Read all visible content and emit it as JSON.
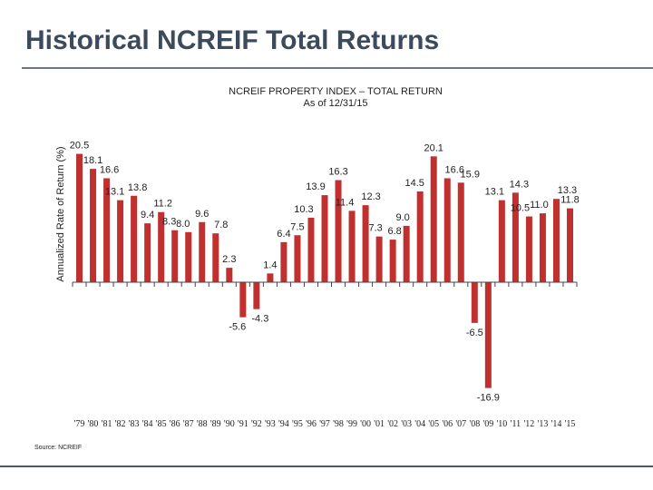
{
  "slide": {
    "title": "Historical NCREIF Total Returns",
    "source": "Source: NCREIF"
  },
  "colors": {
    "bar": "#c0302f",
    "title": "#3b4a5c"
  },
  "chart_data": {
    "type": "bar",
    "title": "NCREIF PROPERTY INDEX – TOTAL RETURN",
    "subtitle": "As of 12/31/15",
    "xlabel": "",
    "ylabel": "Annualized Rate of Return (%)",
    "ylim": [
      -18,
      22
    ],
    "grid": false,
    "categories": [
      "'79",
      "'80",
      "'81",
      "'82",
      "'83",
      "'84",
      "'85",
      "'86",
      "'87",
      "'88",
      "'89",
      "'90",
      "'91",
      "'92",
      "'93",
      "'94",
      "'95",
      "'96",
      "'97",
      "'98",
      "'99",
      "'00",
      "'01",
      "'02",
      "'03",
      "'04",
      "'05",
      "'06",
      "'07",
      "'08",
      "'09",
      "'10",
      "'11",
      "'12",
      "'13",
      "'14",
      "'15"
    ],
    "values": [
      20.5,
      18.1,
      16.6,
      13.1,
      13.8,
      9.4,
      11.2,
      8.3,
      8.0,
      9.6,
      7.8,
      2.3,
      -5.6,
      -4.3,
      1.4,
      6.4,
      7.5,
      10.3,
      13.9,
      16.3,
      11.4,
      12.3,
      7.3,
      6.8,
      9.0,
      14.5,
      20.1,
      16.6,
      15.9,
      -6.5,
      -16.9,
      13.1,
      14.3,
      10.5,
      11.0,
      13.3,
      11.8
    ],
    "labels": [
      "20.5",
      "18.1",
      "16.6",
      "13.1",
      "13.8",
      "9.4",
      "11.2",
      "8.3",
      "8.0",
      "9.6",
      "7.8",
      "2.3",
      "-5.6",
      "-4.3",
      "1.4",
      "6.4",
      "7.5",
      "10.3",
      "13.9",
      "16.3",
      "11.4",
      "12.3",
      "7.3",
      "6.8",
      "9.0",
      "14.5",
      "20.1",
      "16.6",
      "15.9",
      "-6.5",
      "-16.9",
      "13.1",
      "14.3",
      "10.5",
      "11.0",
      "13.3",
      "11.8"
    ]
  }
}
